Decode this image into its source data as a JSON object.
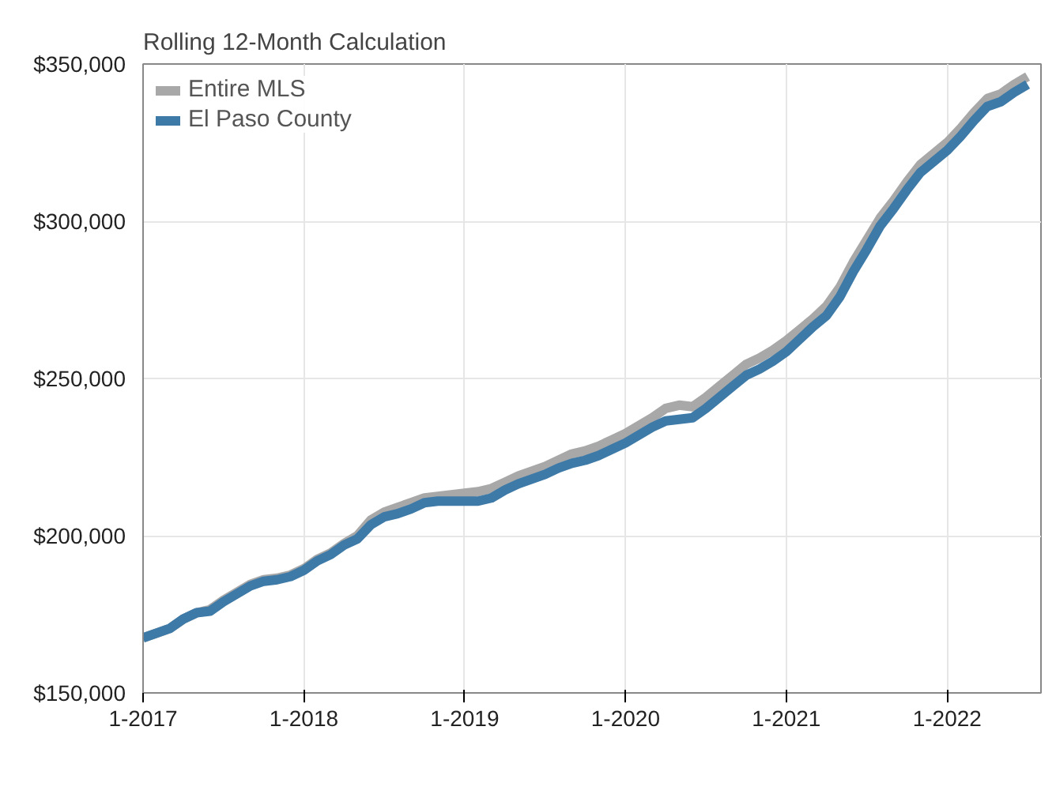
{
  "chart_data": {
    "type": "line",
    "title": "Rolling 12-Month Calculation",
    "x": [
      "2017-01",
      "2017-02",
      "2017-03",
      "2017-04",
      "2017-05",
      "2017-06",
      "2017-07",
      "2017-08",
      "2017-09",
      "2017-10",
      "2017-11",
      "2017-12",
      "2018-01",
      "2018-02",
      "2018-03",
      "2018-04",
      "2018-05",
      "2018-06",
      "2018-07",
      "2018-08",
      "2018-09",
      "2018-10",
      "2018-11",
      "2018-12",
      "2019-01",
      "2019-02",
      "2019-03",
      "2019-04",
      "2019-05",
      "2019-06",
      "2019-07",
      "2019-08",
      "2019-09",
      "2019-10",
      "2019-11",
      "2019-12",
      "2020-01",
      "2020-02",
      "2020-03",
      "2020-04",
      "2020-05",
      "2020-06",
      "2020-07",
      "2020-08",
      "2020-09",
      "2020-10",
      "2020-11",
      "2020-12",
      "2021-01",
      "2021-02",
      "2021-03",
      "2021-04",
      "2021-05",
      "2021-06",
      "2021-07",
      "2021-08",
      "2021-09",
      "2021-10",
      "2021-11",
      "2021-12",
      "2022-01",
      "2022-02",
      "2022-03",
      "2022-04",
      "2022-05",
      "2022-06",
      "2022-07"
    ],
    "series": [
      {
        "name": "Entire MLS",
        "color": "#a8a8a8",
        "values": [
          167500,
          169000,
          170500,
          173500,
          175500,
          176500,
          179500,
          182000,
          184500,
          186000,
          186500,
          187500,
          189500,
          192500,
          194500,
          197500,
          200000,
          205000,
          207500,
          209000,
          210500,
          212000,
          212500,
          213000,
          213500,
          214000,
          215000,
          217000,
          219000,
          220500,
          222000,
          224000,
          226000,
          227000,
          228500,
          230500,
          232500,
          235000,
          237500,
          240500,
          241500,
          241000,
          244000,
          247500,
          251000,
          254500,
          256500,
          259000,
          262000,
          265500,
          269000,
          273000,
          279000,
          287000,
          294000,
          301000,
          306500,
          312500,
          318000,
          321500,
          325000,
          329500,
          334500,
          339000,
          340500,
          343500,
          346000
        ]
      },
      {
        "name": "El Paso County",
        "color": "#3d7aa8",
        "values": [
          167500,
          169000,
          170500,
          173500,
          175500,
          176000,
          179000,
          181500,
          184000,
          185500,
          186000,
          187000,
          189000,
          192000,
          194000,
          197000,
          199000,
          203500,
          206000,
          207000,
          208500,
          210500,
          211000,
          211000,
          211000,
          211000,
          212000,
          214500,
          216500,
          218000,
          219500,
          221500,
          223000,
          224000,
          225500,
          227500,
          229500,
          232000,
          234500,
          236500,
          237000,
          237500,
          240500,
          244000,
          247500,
          251000,
          253000,
          255500,
          258500,
          262500,
          266500,
          270000,
          276000,
          284000,
          291000,
          298500,
          304000,
          310000,
          315500,
          319000,
          322500,
          327000,
          332000,
          336500,
          338000,
          341000,
          343500
        ]
      }
    ],
    "xlim": [
      "2017-01",
      "2022-08"
    ],
    "xticks": [
      {
        "value": "2017-01",
        "label": "1-2017"
      },
      {
        "value": "2018-01",
        "label": "1-2018"
      },
      {
        "value": "2019-01",
        "label": "1-2019"
      },
      {
        "value": "2020-01",
        "label": "1-2020"
      },
      {
        "value": "2021-01",
        "label": "1-2021"
      },
      {
        "value": "2022-01",
        "label": "1-2022"
      }
    ],
    "ylim": [
      150000,
      350000
    ],
    "yticks": [
      {
        "value": 150000,
        "label": "$150,000"
      },
      {
        "value": 200000,
        "label": "$200,000"
      },
      {
        "value": 250000,
        "label": "$250,000"
      },
      {
        "value": 300000,
        "label": "$300,000"
      },
      {
        "value": 350000,
        "label": "$350,000"
      }
    ],
    "grid": true,
    "legend": "top left",
    "line_style": "solid"
  }
}
